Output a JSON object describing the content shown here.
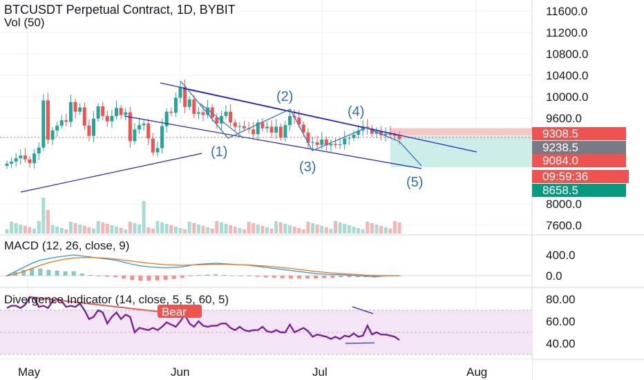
{
  "title": "BTCUSDT Perpetual Contract, 1D, BYBIT",
  "volume_label": "Vol (50)",
  "macd_label": "MACD (12, 26, close, 9)",
  "divergence_label": "Divergence Indicator (14, close, 5, 5, 60, 5)",
  "bear_label": "Bear",
  "waves": [
    "(1)",
    "(2)",
    "(3)",
    "(4)",
    "(5)"
  ],
  "colors": {
    "up": "#26a69a",
    "down": "#ef5350",
    "trendline": "#1f1fd1",
    "wave": "#3d7fc4",
    "rsi": "#7b1fa2",
    "bear": "#ef5350",
    "macd": "#2196f3",
    "signal": "#ff6d00"
  },
  "price_tags": [
    {
      "label": "9308.5",
      "color": "#ef5350"
    },
    {
      "label": "9238.5",
      "color": "#787b86"
    },
    {
      "label": "9084.0",
      "color": "#ef5350"
    },
    {
      "label": "09:59:36",
      "color": "#ef5350"
    },
    {
      "label": "8658.5",
      "color": "#089981"
    }
  ],
  "chart_data": [
    {
      "type": "candlestick",
      "title": "BTCUSDT Perpetual Contract, 1D, BYBIT",
      "x_labels": [
        "May",
        "Jun",
        "Jul",
        "Aug"
      ],
      "y_ticks": [
        "11600.0",
        "11200.0",
        "10800.0",
        "10400.0",
        "10000.0",
        "9600.0",
        "8000.0",
        "7600.0"
      ],
      "ylim": [
        7400,
        11800
      ],
      "close": [
        8750,
        8790,
        8850,
        8900,
        8830,
        8760,
        8940,
        9050,
        9930,
        9200,
        9370,
        9460,
        9560,
        9530,
        9900,
        9720,
        9800,
        9460,
        9270,
        9590,
        9820,
        9640,
        9540,
        9640,
        9790,
        9660,
        9710,
        9170,
        9390,
        9470,
        9500,
        9220,
        8960,
        9040,
        9450,
        9720,
        9700,
        9980,
        10180,
        9810,
        9950,
        9680,
        9710,
        9660,
        9800,
        9610,
        9500,
        9640,
        9720,
        9520,
        9440,
        9450,
        9410,
        9390,
        9300,
        9520,
        9410,
        9440,
        9330,
        9440,
        9240,
        9470,
        9640,
        9610,
        9480,
        9330,
        9140,
        9150,
        9100,
        9200,
        9090,
        9120,
        9100,
        9110,
        9220,
        9230,
        9290,
        9370,
        9440,
        9410,
        9310,
        9350,
        9280,
        9310,
        9290,
        9270,
        9210
      ],
      "volume_scale": "relative",
      "price_lines": {
        "last": 9238.5,
        "upper": 9308.5,
        "lower": 8658.5,
        "mid": 9084.0
      }
    },
    {
      "type": "line",
      "title": "MACD (12, 26, close, 9)",
      "y_ticks": [
        "400.0",
        "0.0"
      ],
      "ylim": [
        -250,
        650
      ],
      "series": [
        {
          "values": [
            0,
            80,
            160,
            240,
            300,
            330,
            360,
            380,
            400,
            380,
            360,
            340,
            320,
            300,
            260,
            220,
            190,
            170,
            160,
            150,
            160,
            170,
            200,
            220,
            230,
            240,
            230,
            220,
            210,
            200,
            180,
            160,
            140,
            120,
            100,
            80,
            60,
            40,
            30,
            20,
            20,
            10,
            0,
            -10,
            -20,
            -10,
            0,
            0
          ]
        },
        {
          "values": [
            0,
            30,
            80,
            140,
            200,
            250,
            290,
            320,
            340,
            350,
            350,
            345,
            335,
            320,
            300,
            280,
            260,
            240,
            225,
            210,
            205,
            200,
            205,
            210,
            215,
            220,
            220,
            215,
            210,
            205,
            195,
            185,
            170,
            155,
            140,
            120,
            100,
            80,
            65,
            50,
            40,
            30,
            20,
            10,
            5,
            0,
            0,
            0
          ]
        }
      ]
    },
    {
      "type": "line",
      "title": "Divergence Indicator (14, close, 5, 5, 60, 5)",
      "y_ticks": [
        "80.00",
        "60.00",
        "40.00"
      ],
      "ylim": [
        25,
        88
      ],
      "series": [
        {
          "values": [
            72,
            74,
            74,
            72,
            75,
            82,
            81,
            73,
            74,
            72,
            78,
            80,
            78,
            73,
            74,
            73,
            76,
            70,
            62,
            64,
            70,
            68,
            58,
            64,
            68,
            62,
            66,
            64,
            50,
            54,
            53,
            52,
            54,
            52,
            55,
            59,
            57,
            55,
            60,
            66,
            58,
            55,
            60,
            56,
            55,
            56,
            56,
            58,
            58,
            54,
            52,
            55,
            52,
            51,
            52,
            52,
            55,
            51,
            50,
            52,
            50,
            50,
            57,
            50,
            52,
            54,
            51,
            46,
            48,
            47,
            46,
            44,
            46,
            44,
            47,
            46,
            49,
            46,
            47,
            56,
            48,
            50,
            48,
            48,
            47,
            46,
            43
          ]
        }
      ]
    }
  ]
}
